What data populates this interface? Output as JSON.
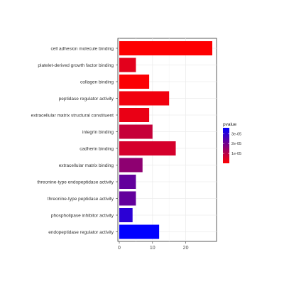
{
  "chart_data": {
    "type": "bar",
    "orientation": "horizontal",
    "categories": [
      "cell adhesion molecule binding",
      "platelet-derived growth factor binding",
      "collagen binding",
      "peptidase regulator activity",
      "extracellular matrix structural constituent",
      "integrin binding",
      "cadherin binding",
      "extracellular matrix binding",
      "threonine-type endopeptidase activity",
      "threonine-type peptidase activity",
      "phospholipase inhibitor activity",
      "endopeptidase regulator activity"
    ],
    "values": [
      28,
      5,
      9,
      15,
      9,
      10,
      17,
      7,
      5,
      5,
      4,
      12
    ],
    "pvalue": [
      3e-07,
      4e-06,
      6e-07,
      2e-06,
      3e-06,
      8e-06,
      6e-06,
      1.6e-05,
      2.2e-05,
      2.2e-05,
      3e-05,
      3.6e-05
    ],
    "xlim": [
      0,
      28
    ],
    "xticks": [
      0,
      10,
      20
    ],
    "grid": true,
    "legend": {
      "title": "pvalue",
      "placement": "right",
      "labels": [
        "3e-05",
        "2e-05",
        "1e-05"
      ],
      "label_values": [
        3e-05,
        2e-05,
        1e-05
      ],
      "range": [
        0,
        3.6e-05
      ],
      "colors": {
        "low": "#ff0000",
        "high": "#0000ff"
      }
    }
  }
}
